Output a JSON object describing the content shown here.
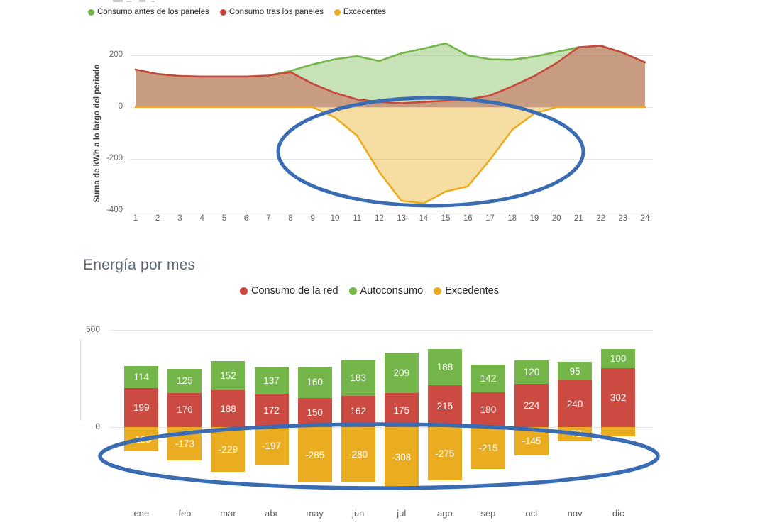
{
  "hourly_chart": {
    "y_axis_title": "Suma de kWh a lo largo del periodo",
    "y_ticks": [
      "200",
      "0",
      "-200",
      "-400"
    ],
    "legend": [
      {
        "label": "Consumo antes de los paneles",
        "color": "#74b649"
      },
      {
        "label": "Consumo tras los paneles",
        "color": "#c8483e"
      },
      {
        "label": "Excedentes",
        "color": "#eaad21"
      }
    ]
  },
  "monthly_chart": {
    "title": "Energía por mes",
    "y_ticks": [
      "500",
      "0"
    ],
    "legend": [
      {
        "label": "Consumo de la red",
        "color": "#cb4a42"
      },
      {
        "label": "Autoconsumo",
        "color": "#74b649"
      },
      {
        "label": "Excedentes",
        "color": "#eaad21"
      }
    ]
  },
  "chart_data": [
    {
      "type": "area",
      "title": "",
      "xlabel": "",
      "ylabel": "Suma de kWh a lo largo del periodo",
      "ylim": [
        -400,
        260
      ],
      "grid": true,
      "legend_position": "top",
      "x": [
        1,
        2,
        3,
        4,
        5,
        6,
        7,
        8,
        9,
        10,
        11,
        12,
        13,
        14,
        15,
        16,
        17,
        18,
        19,
        20,
        21,
        22,
        23,
        24
      ],
      "series": [
        {
          "name": "Consumo antes de los paneles",
          "color": "#74b649",
          "values": [
            145,
            128,
            120,
            118,
            118,
            118,
            122,
            140,
            165,
            185,
            197,
            178,
            208,
            226,
            246,
            200,
            185,
            183,
            195,
            213,
            231,
            237,
            210,
            173
          ]
        },
        {
          "name": "Consumo tras los paneles",
          "color": "#c8483e",
          "values": [
            145,
            128,
            120,
            118,
            118,
            118,
            122,
            135,
            90,
            55,
            30,
            20,
            15,
            20,
            25,
            30,
            45,
            80,
            120,
            170,
            231,
            237,
            210,
            173
          ]
        },
        {
          "name": "Excedentes",
          "color": "#eaad21",
          "values": [
            0,
            0,
            0,
            0,
            0,
            0,
            0,
            0,
            0,
            -40,
            -110,
            -250,
            -362,
            -372,
            -326,
            -306,
            -203,
            -88,
            -25,
            0,
            0,
            0,
            0,
            0
          ]
        }
      ],
      "annotation": {
        "shape": "ellipse",
        "color": "#3a6cb4",
        "highlights": "negative Excedentes area between hours 9 and 20"
      }
    },
    {
      "type": "bar",
      "stacked": true,
      "title": "Energía por mes",
      "xlabel": "",
      "ylabel": "",
      "ylim": [
        -400,
        500
      ],
      "legend_position": "top",
      "categories": [
        "ene",
        "feb",
        "mar",
        "abr",
        "may",
        "jun",
        "jul",
        "ago",
        "sep",
        "oct",
        "nov",
        "dic"
      ],
      "series": [
        {
          "name": "Consumo de la red",
          "color": "#cb4a42",
          "values": [
            199,
            176,
            188,
            172,
            150,
            162,
            175,
            215,
            180,
            224,
            240,
            302
          ],
          "labels": [
            "199",
            "176",
            "188",
            "172",
            "150",
            "162",
            "175",
            "215",
            "180",
            "224",
            "240",
            "302"
          ]
        },
        {
          "name": "Autoconsumo",
          "color": "#74b649",
          "values": [
            114,
            125,
            152,
            137,
            160,
            183,
            209,
            188,
            142,
            120,
            95,
            100
          ],
          "labels": [
            "114",
            "125",
            "152",
            "137",
            "160",
            "183",
            "209",
            "188",
            "142",
            "120",
            "95",
            "100"
          ]
        },
        {
          "name": "Excedentes",
          "color": "#eaad21",
          "values": [
            -125,
            -173,
            -229,
            -197,
            -285,
            -280,
            -308,
            -275,
            -215,
            -145,
            -72,
            -48
          ],
          "labels": [
            "-125",
            "-173",
            "-229",
            "-197",
            "-285",
            "-280",
            "-308",
            "-275",
            "-215",
            "-145",
            "-72",
            ""
          ]
        }
      ],
      "annotation": {
        "shape": "ellipse",
        "color": "#3a6cb4",
        "highlights": "negative Excedentes bars for all months"
      }
    }
  ]
}
